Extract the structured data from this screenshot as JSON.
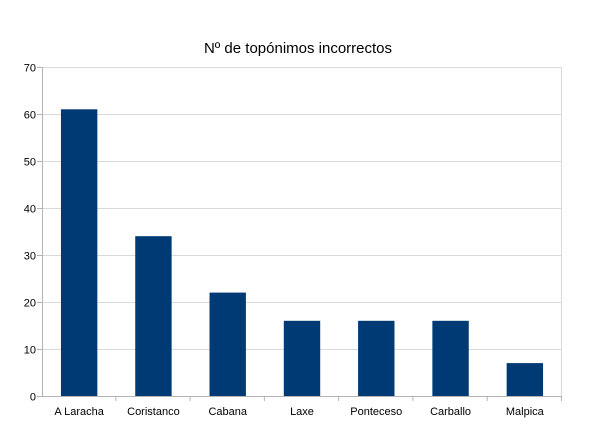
{
  "chart_data": {
    "type": "bar",
    "title": "Nº de topónimos incorrectos",
    "xlabel": "",
    "ylabel": "",
    "categories": [
      "A Laracha",
      "Coristanco",
      "Cabana",
      "Laxe",
      "Ponteceso",
      "Carballo",
      "Malpica"
    ],
    "values": [
      61,
      34,
      22,
      16,
      16,
      16,
      7
    ],
    "ylim": [
      0,
      70
    ],
    "yticks": [
      0,
      10,
      20,
      30,
      40,
      50,
      60,
      70
    ],
    "grid": true,
    "legend": "none",
    "bar_color": "#003a75",
    "grid_color": "#d9d9d9",
    "axis_color": "#b3b3b3"
  }
}
